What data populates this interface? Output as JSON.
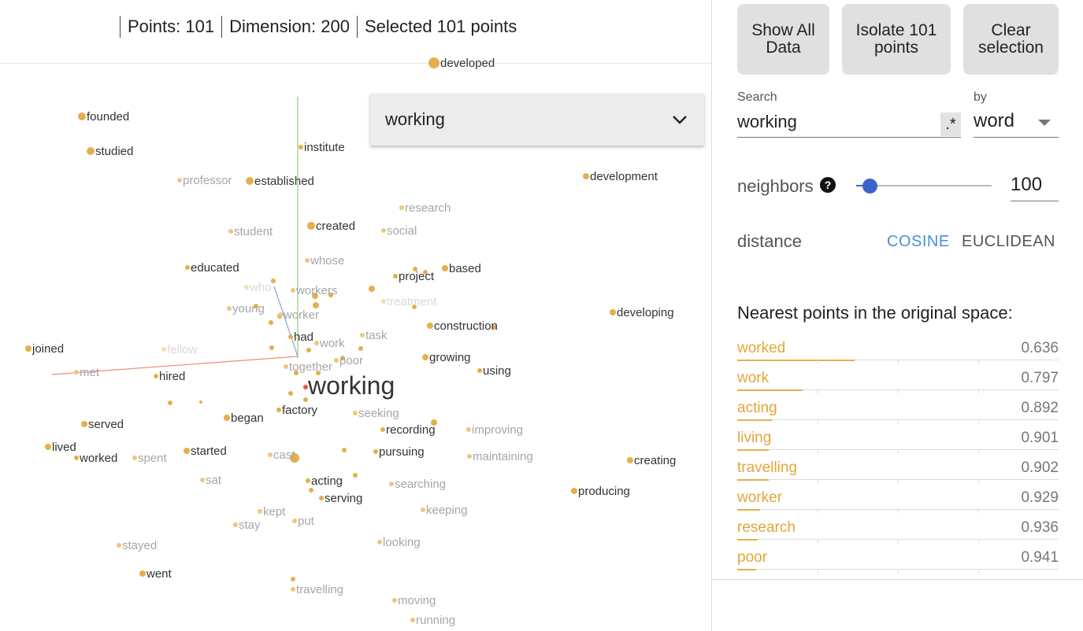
{
  "stats": {
    "points": "Points: 101",
    "dimension": "Dimension: 200",
    "selected": "Selected 101 points"
  },
  "label_select": {
    "value": "working"
  },
  "buttons": {
    "show_all": "Show All Data",
    "isolate": "Isolate 101 points",
    "clear": "Clear selection"
  },
  "search": {
    "label": "Search",
    "value": "working",
    "regex_label": ".*",
    "by_label": "by",
    "by_value": "word"
  },
  "neighbors": {
    "label": "neighbors",
    "help_icon": "question-circle-icon",
    "value": "100",
    "slider_fraction": 0.1
  },
  "distance": {
    "label": "distance",
    "cosine": "COSINE",
    "euclidean": "EUCLIDEAN",
    "selected": "COSINE"
  },
  "nearest": {
    "title": "Nearest points in the original space:",
    "items": [
      {
        "word": "worked",
        "value": "0.636",
        "bar": 0.364
      },
      {
        "word": "work",
        "value": "0.797",
        "bar": 0.203
      },
      {
        "word": "acting",
        "value": "0.892",
        "bar": 0.108
      },
      {
        "word": "living",
        "value": "0.901",
        "bar": 0.099
      },
      {
        "word": "travelling",
        "value": "0.902",
        "bar": 0.098
      },
      {
        "word": "worker",
        "value": "0.929",
        "bar": 0.071
      },
      {
        "word": "research",
        "value": "0.936",
        "bar": 0.064
      },
      {
        "word": "poor",
        "value": "0.941",
        "bar": 0.059
      }
    ]
  },
  "colors": {
    "point": "#e3b04b",
    "selected_point": "#e5534b",
    "accent": "#4a90d9",
    "slider": "#3a63c8"
  },
  "projection": {
    "focus_word": "working",
    "words": [
      "developed",
      "founded",
      "studied",
      "institute",
      "professor",
      "established",
      "development",
      "research",
      "student",
      "created",
      "social",
      "whose",
      "educated",
      "project",
      "based",
      "who",
      "workers",
      "treatment",
      "young",
      "worker",
      "developing",
      "construction",
      "had",
      "work",
      "task",
      "joined",
      "fellow",
      "poor",
      "growing",
      "met",
      "together",
      "using",
      "hired",
      "began",
      "factory",
      "seeking",
      "served",
      "recording",
      "improving",
      "lived",
      "started",
      "worked",
      "spent",
      "cast",
      "pursuing",
      "maintaining",
      "creating",
      "sat",
      "acting",
      "searching",
      "serving",
      "producing",
      "kept",
      "keeping",
      "stay",
      "put",
      "stayed",
      "looking",
      "went",
      "travelling",
      "moving",
      "running"
    ]
  }
}
